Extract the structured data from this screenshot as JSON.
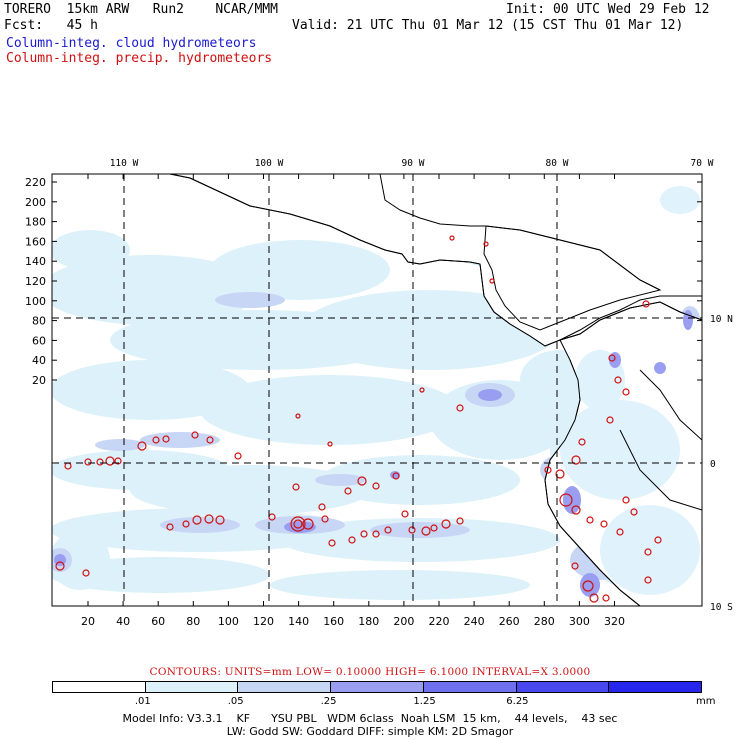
{
  "header": {
    "line1_left": "TORERO  15km ARW   Run2    NCAR/MMM",
    "line1_right": "Init: 00 UTC Wed 29 Feb 12",
    "line2_left": "Fcst:   45 h",
    "line2_right": "Valid: 21 UTC Thu 01 Mar 12 (15 CST Thu 01 Mar 12)",
    "legend_cloud": "Column-integ. cloud hydrometeors",
    "legend_precip": "Column-integ. precip. hydrometeors"
  },
  "map": {
    "lon_labels": [
      "110 W",
      "100 W",
      "90 W",
      "80 W",
      "70 W"
    ],
    "lat_labels": [
      "10 N",
      "0",
      "10 S"
    ],
    "y_ticks": [
      "220",
      "200",
      "180",
      "160",
      "140",
      "120",
      "100",
      "80",
      "60",
      "40",
      "20"
    ],
    "x_ticks": [
      "20",
      "40",
      "60",
      "80",
      "100",
      "120",
      "140",
      "160",
      "180",
      "200",
      "220",
      "240",
      "260",
      "280",
      "300",
      "320"
    ],
    "colors": {
      "light": "#ddf1fb",
      "mid1": "#c8d6f6",
      "mid2": "#9a9ef0",
      "precip": "#d01010",
      "grid": "#000000",
      "coast": "#000000"
    }
  },
  "contours_text": "CONTOURS:  UNITS=mm  LOW= 0.10000      HIGH=  6.1000      INTERVAL=X  3.0000",
  "colorbar": {
    "labels": [
      ".01",
      ".05",
      ".25",
      "1.25",
      "6.25"
    ],
    "unit": "mm",
    "colors": [
      "#ffffff",
      "#ddf1fb",
      "#c8d6f6",
      "#9a9ef0",
      "#6e70ee",
      "#4848ee",
      "#2626ec"
    ]
  },
  "model_info": {
    "line1": "Model Info: V3.3.1    KF      YSU PBL   WDM 6class  Noah LSM  15 km,    44 levels,    43 sec",
    "line2": "LW: Godd SW: Goddard DIFF: simple KM: 2D Smagor"
  }
}
